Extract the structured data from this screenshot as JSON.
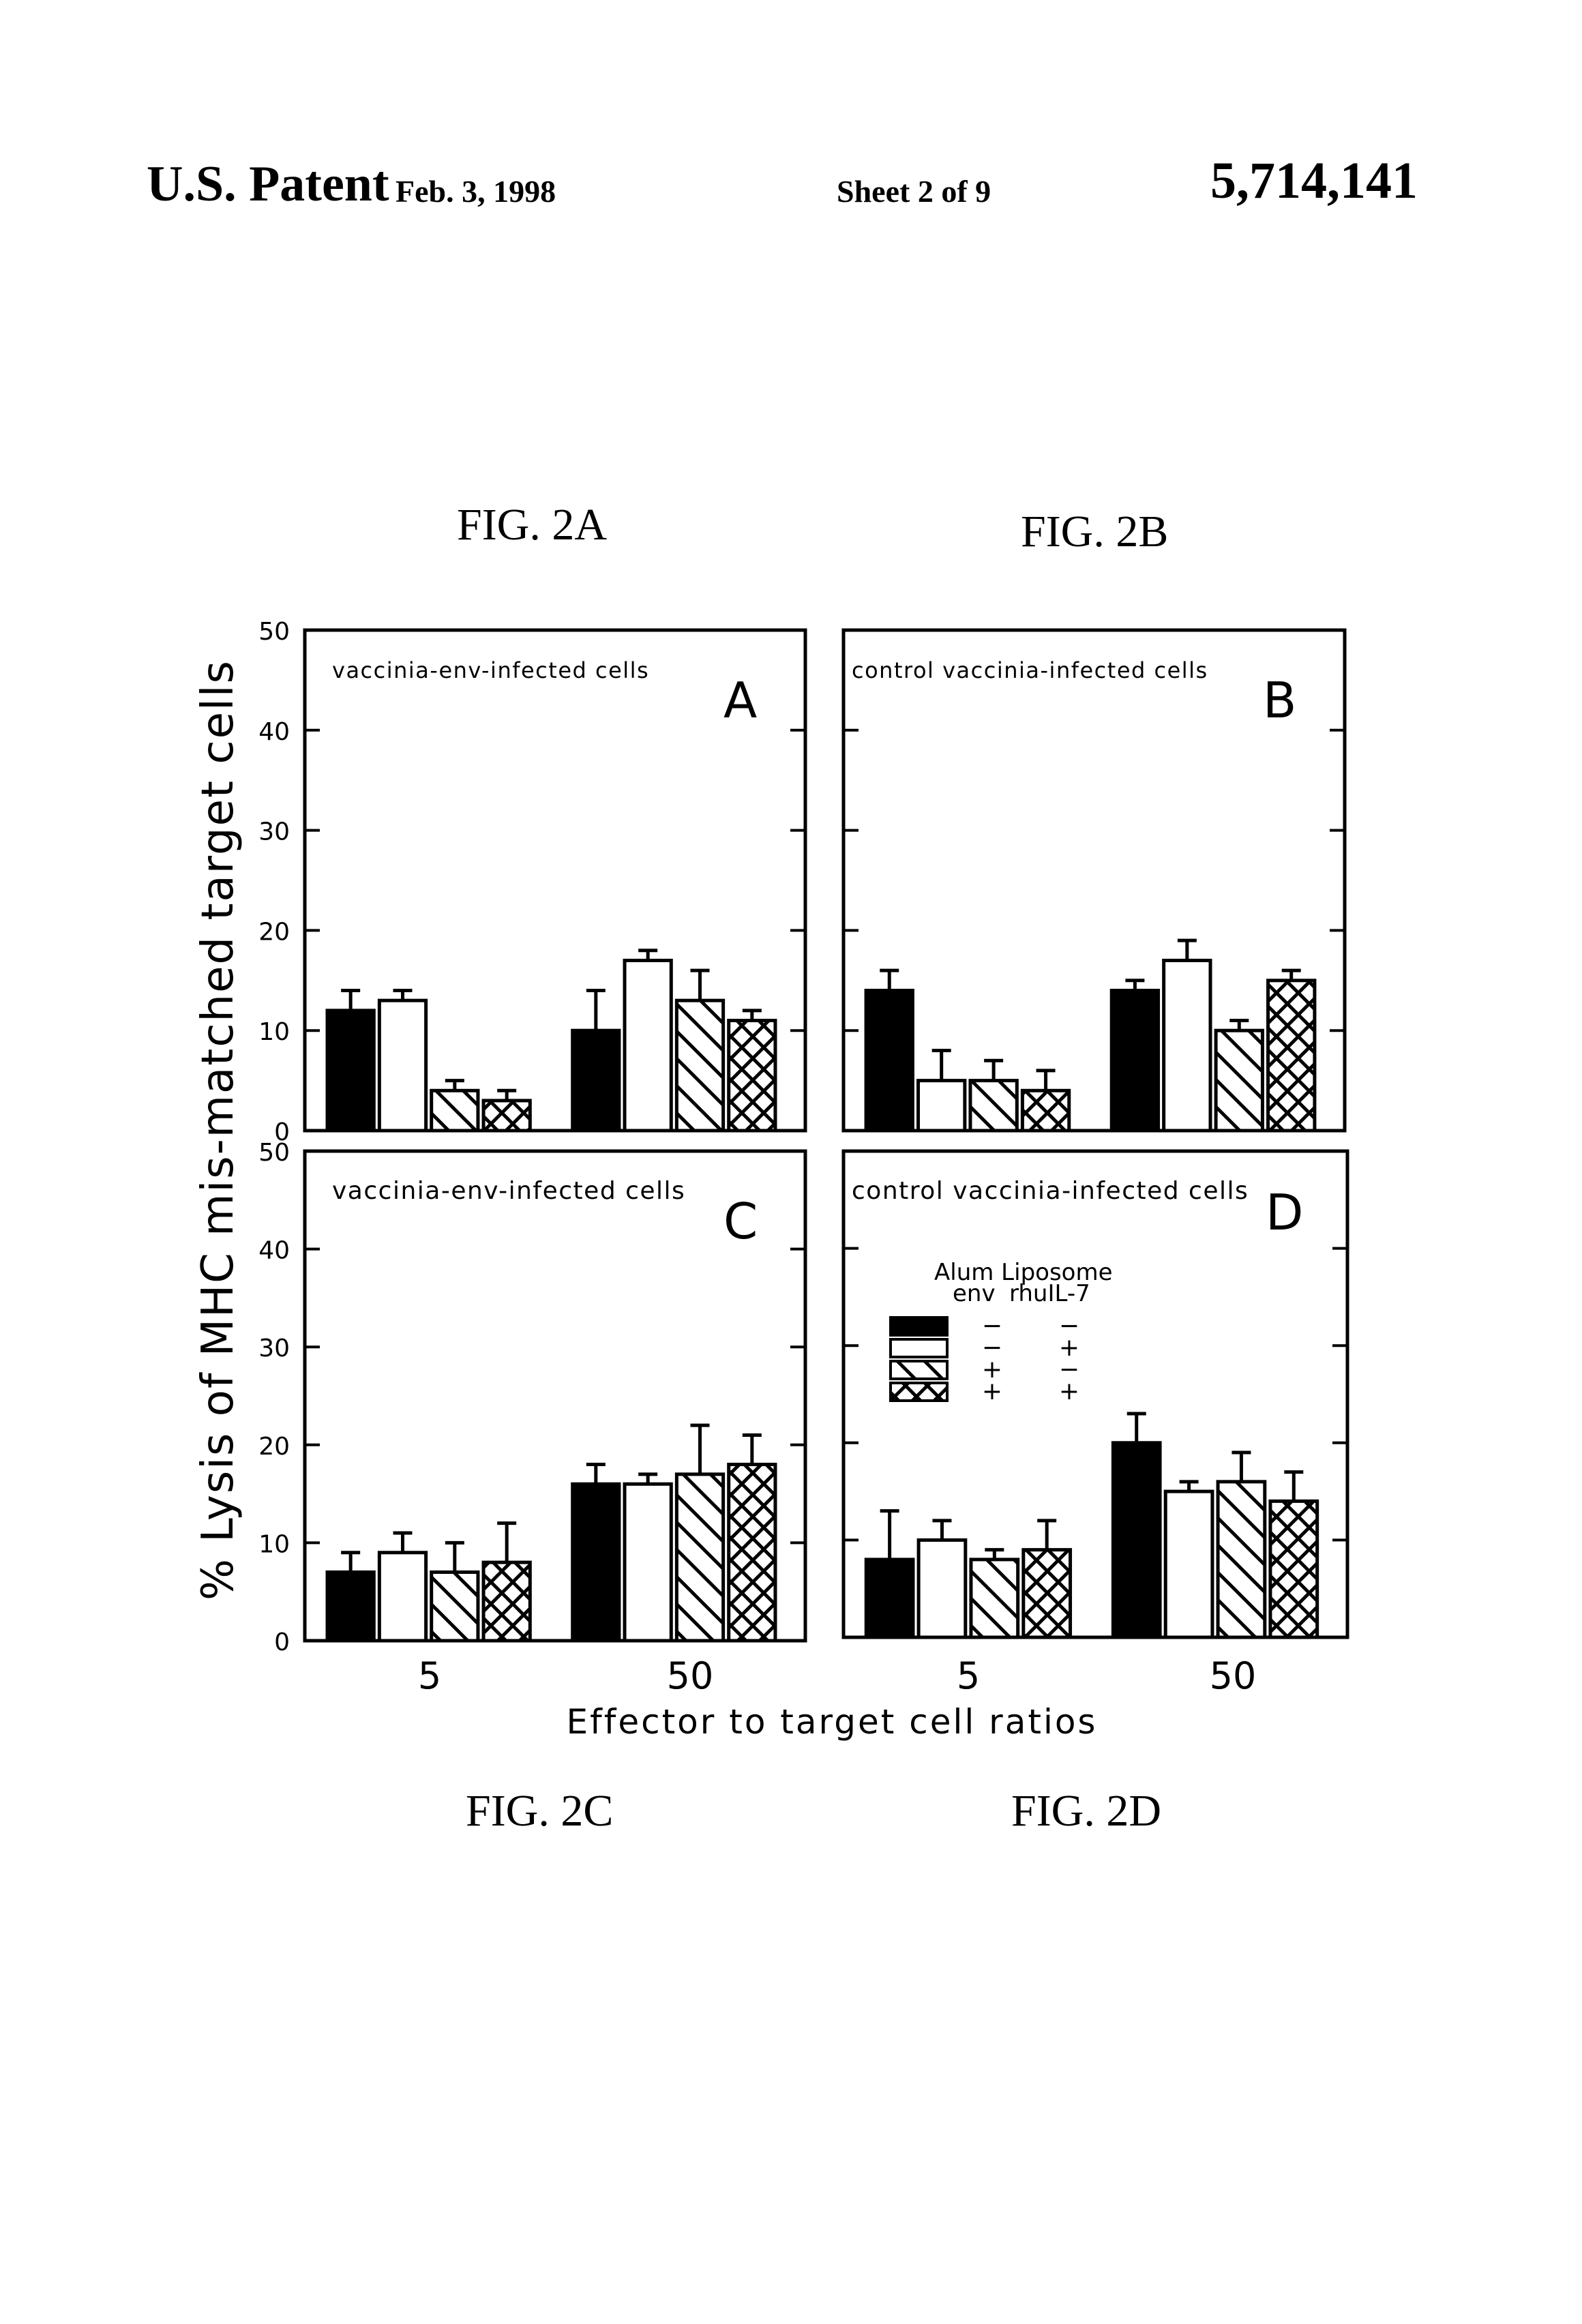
{
  "header": {
    "left": "U.S. Patent",
    "date": "Feb. 3, 1998",
    "sheet": "Sheet 2 of 9",
    "patent_number": "5,714,141"
  },
  "captions": {
    "fig_a": "FIG. 2A",
    "fig_b": "FIG. 2B",
    "fig_c": "FIG. 2C",
    "fig_d": "FIG. 2D"
  },
  "axes": {
    "ylabel": "% Lysis of MHC mis-matched target cells",
    "xlabel": "Effector to target cell ratios",
    "yticks": [
      "0",
      "10",
      "20",
      "30",
      "40",
      "50"
    ],
    "xticks": [
      "5",
      "50"
    ]
  },
  "legend": {
    "col1_header": "Alum Liposome",
    "col1_sub": "env",
    "col2_header": "rhuIL-7",
    "rows": [
      {
        "pattern": "solid-black",
        "env": "−",
        "il7": "−"
      },
      {
        "pattern": "open-white",
        "env": "−",
        "il7": "+"
      },
      {
        "pattern": "diagonal-hatch",
        "env": "+",
        "il7": "−"
      },
      {
        "pattern": "cross-hatch",
        "env": "+",
        "il7": "+"
      }
    ]
  },
  "panels": [
    {
      "letter": "A",
      "subtitle": "vaccinia-env-infected cells"
    },
    {
      "letter": "B",
      "subtitle": "control vaccinia-infected cells"
    },
    {
      "letter": "C",
      "subtitle": "vaccinia-env-infected cells"
    },
    {
      "letter": "D",
      "subtitle": "control vaccinia-infected cells"
    }
  ],
  "chart_data": [
    {
      "type": "bar",
      "title": "FIG. 2A — vaccinia-env-infected cells (A)",
      "xlabel": "Effector to target cell ratios",
      "ylabel": "% Lysis of MHC mis-matched target cells",
      "ylim": [
        0,
        50
      ],
      "categories": [
        "5",
        "50"
      ],
      "series": [
        {
          "name": "Alum Liposome env − / rhuIL-7 −",
          "values": [
            12,
            10
          ],
          "error_upper": [
            14,
            14
          ]
        },
        {
          "name": "Alum Liposome env − / rhuIL-7 +",
          "values": [
            13,
            17
          ],
          "error_upper": [
            14,
            18
          ]
        },
        {
          "name": "Alum Liposome env + / rhuIL-7 −",
          "values": [
            4,
            13
          ],
          "error_upper": [
            5,
            16
          ]
        },
        {
          "name": "Alum Liposome env + / rhuIL-7 +",
          "values": [
            3,
            11
          ],
          "error_upper": [
            4,
            12
          ]
        }
      ]
    },
    {
      "type": "bar",
      "title": "FIG. 2B — control vaccinia-infected cells (B)",
      "xlabel": "Effector to target cell ratios",
      "ylabel": "% Lysis of MHC mis-matched target cells",
      "ylim": [
        0,
        50
      ],
      "categories": [
        "5",
        "50"
      ],
      "series": [
        {
          "name": "Alum Liposome env − / rhuIL-7 −",
          "values": [
            14,
            14
          ],
          "error_upper": [
            16,
            15
          ]
        },
        {
          "name": "Alum Liposome env − / rhuIL-7 +",
          "values": [
            5,
            17
          ],
          "error_upper": [
            8,
            19
          ]
        },
        {
          "name": "Alum Liposome env + / rhuIL-7 −",
          "values": [
            5,
            10
          ],
          "error_upper": [
            7,
            11
          ]
        },
        {
          "name": "Alum Liposome env + / rhuIL-7 +",
          "values": [
            4,
            15
          ],
          "error_upper": [
            6,
            16
          ]
        }
      ]
    },
    {
      "type": "bar",
      "title": "FIG. 2C — vaccinia-env-infected cells (C)",
      "xlabel": "Effector to target cell ratios",
      "ylabel": "% Lysis of MHC mis-matched target cells",
      "ylim": [
        0,
        50
      ],
      "categories": [
        "5",
        "50"
      ],
      "series": [
        {
          "name": "Alum Liposome env − / rhuIL-7 −",
          "values": [
            7,
            16
          ],
          "error_upper": [
            9,
            18
          ]
        },
        {
          "name": "Alum Liposome env − / rhuIL-7 +",
          "values": [
            9,
            16
          ],
          "error_upper": [
            11,
            17
          ]
        },
        {
          "name": "Alum Liposome env + / rhuIL-7 −",
          "values": [
            7,
            17
          ],
          "error_upper": [
            10,
            22
          ]
        },
        {
          "name": "Alum Liposome env + / rhuIL-7 +",
          "values": [
            8,
            18
          ],
          "error_upper": [
            12,
            21
          ]
        }
      ]
    },
    {
      "type": "bar",
      "title": "FIG. 2D — control vaccinia-infected cells (D)",
      "xlabel": "Effector to target cell ratios",
      "ylabel": "% Lysis of MHC mis-matched target cells",
      "ylim": [
        0,
        50
      ],
      "categories": [
        "5",
        "50"
      ],
      "series": [
        {
          "name": "Alum Liposome env − / rhuIL-7 −",
          "values": [
            8,
            20
          ],
          "error_upper": [
            13,
            23
          ]
        },
        {
          "name": "Alum Liposome env − / rhuIL-7 +",
          "values": [
            10,
            15
          ],
          "error_upper": [
            12,
            16
          ]
        },
        {
          "name": "Alum Liposome env + / rhuIL-7 −",
          "values": [
            8,
            16
          ],
          "error_upper": [
            9,
            19
          ]
        },
        {
          "name": "Alum Liposome env + / rhuIL-7 +",
          "values": [
            9,
            14
          ],
          "error_upper": [
            12,
            17
          ]
        }
      ],
      "legend_position": "upper-left inside panel D"
    }
  ]
}
